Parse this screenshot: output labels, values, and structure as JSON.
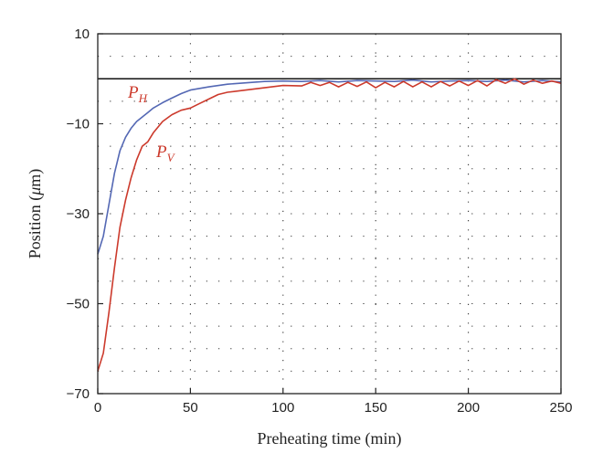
{
  "chart_data": {
    "type": "line",
    "title": "",
    "xlabel": "Preheating time (min)",
    "ylabel_prefix": "Position (",
    "ylabel_unit": "μ",
    "ylabel_suffix": "m)",
    "xlim": [
      0,
      250
    ],
    "ylim": [
      -70,
      10
    ],
    "xticks": [
      0,
      50,
      100,
      150,
      200,
      250
    ],
    "yticks": [
      10,
      -10,
      -30,
      -50,
      -70
    ],
    "ytick_labels": [
      "10",
      "−10",
      "−30",
      "−50",
      "−70"
    ],
    "x_gridlines": [
      50,
      100,
      150,
      200
    ],
    "y_gridlines": [
      5,
      0,
      -5,
      -10,
      -15,
      -20,
      -25,
      -30,
      -35,
      -40,
      -45,
      -50,
      -55,
      -60,
      -65
    ],
    "grid": "dotted",
    "reference_line_y": 0,
    "series": [
      {
        "name_main": "P",
        "name_sub": "H",
        "color": "#5468b4",
        "x": [
          0,
          3,
          6,
          9,
          12,
          15,
          18,
          21,
          24,
          27,
          30,
          35,
          40,
          45,
          50,
          60,
          70,
          80,
          90,
          100,
          110,
          120,
          130,
          140,
          150,
          160,
          170,
          180,
          190,
          200,
          210,
          220,
          230,
          240,
          250
        ],
        "y": [
          -39,
          -35,
          -28,
          -21,
          -16,
          -13,
          -11,
          -9.5,
          -8.5,
          -7.5,
          -6.5,
          -5.3,
          -4.3,
          -3.3,
          -2.5,
          -1.8,
          -1.2,
          -0.9,
          -0.6,
          -0.5,
          -0.6,
          -0.4,
          -0.7,
          -0.4,
          -0.5,
          -0.6,
          -0.3,
          -0.7,
          -0.5,
          -0.4,
          -0.6,
          -0.3,
          -0.7,
          -0.4,
          -0.7
        ]
      },
      {
        "name_main": "P",
        "name_sub": "V",
        "color": "#cc3a2c",
        "x": [
          0,
          3,
          6,
          9,
          12,
          15,
          18,
          21,
          24,
          27,
          30,
          35,
          40,
          45,
          50,
          55,
          60,
          65,
          70,
          80,
          90,
          100,
          110,
          115,
          120,
          125,
          130,
          135,
          140,
          145,
          150,
          155,
          160,
          165,
          170,
          175,
          180,
          185,
          190,
          195,
          200,
          205,
          210,
          215,
          220,
          225,
          230,
          235,
          240,
          245,
          250
        ],
        "y": [
          -65,
          -61,
          -52,
          -42,
          -33,
          -27,
          -22,
          -18,
          -15,
          -14,
          -12,
          -9.5,
          -8,
          -7,
          -6.5,
          -5.5,
          -4.5,
          -3.5,
          -3.0,
          -2.5,
          -2.0,
          -1.5,
          -1.6,
          -0.8,
          -1.5,
          -0.8,
          -1.8,
          -0.8,
          -1.7,
          -0.7,
          -2.0,
          -0.8,
          -1.8,
          -0.6,
          -1.8,
          -0.7,
          -1.8,
          -0.6,
          -1.6,
          -0.5,
          -1.5,
          -0.4,
          -1.6,
          -0.2,
          -1.0,
          0.0,
          -1.2,
          -0.3,
          -1.0,
          -0.5,
          -1.0
        ]
      }
    ]
  }
}
